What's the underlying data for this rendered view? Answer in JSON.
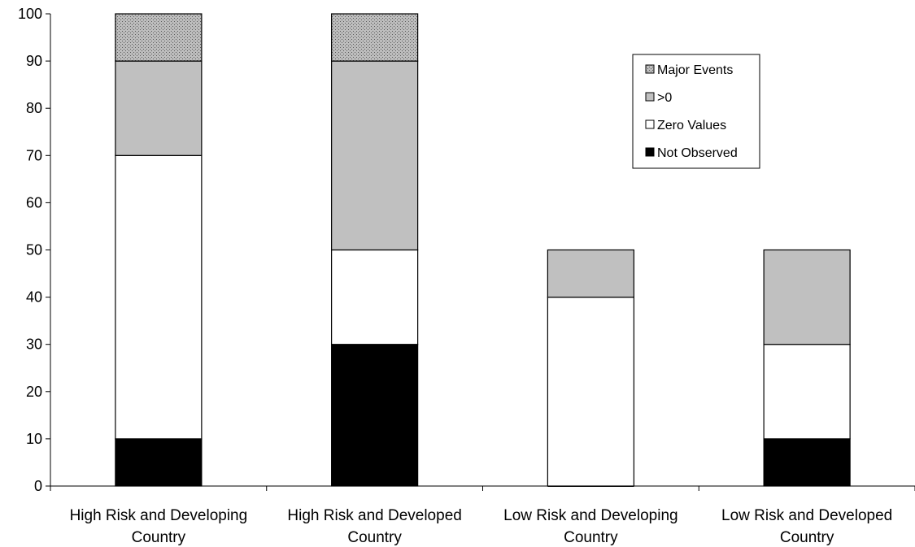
{
  "chart_data": {
    "type": "bar",
    "stacked": true,
    "categories": [
      [
        "High Risk and Developing",
        "Country"
      ],
      [
        "High Risk and Developed",
        "Country"
      ],
      [
        "Low Risk and Developing",
        "Country"
      ],
      [
        "Low Risk and Developed",
        "Country"
      ]
    ],
    "series": [
      {
        "name": "Not Observed",
        "values": [
          10,
          30,
          0,
          10
        ],
        "color": "#000000",
        "pattern": "solid"
      },
      {
        "name": "Zero Values",
        "values": [
          60,
          20,
          40,
          20
        ],
        "color": "#ffffff",
        "pattern": "solid"
      },
      {
        "name": ">0",
        "values": [
          20,
          40,
          10,
          20
        ],
        "color": "#c0c0c0",
        "pattern": "solid"
      },
      {
        "name": "Major Events",
        "values": [
          10,
          10,
          0,
          0
        ],
        "color": "#a8a8a8",
        "pattern": "dotted"
      }
    ],
    "ylim": [
      0,
      100
    ],
    "yticks": [
      0,
      10,
      20,
      30,
      40,
      50,
      60,
      70,
      80,
      90,
      100
    ],
    "title": "",
    "xlabel": "",
    "ylabel": "",
    "grid": false,
    "legend": {
      "position": "top-right",
      "order": [
        "Major Events",
        ">0",
        "Zero Values",
        "Not Observed"
      ]
    }
  }
}
